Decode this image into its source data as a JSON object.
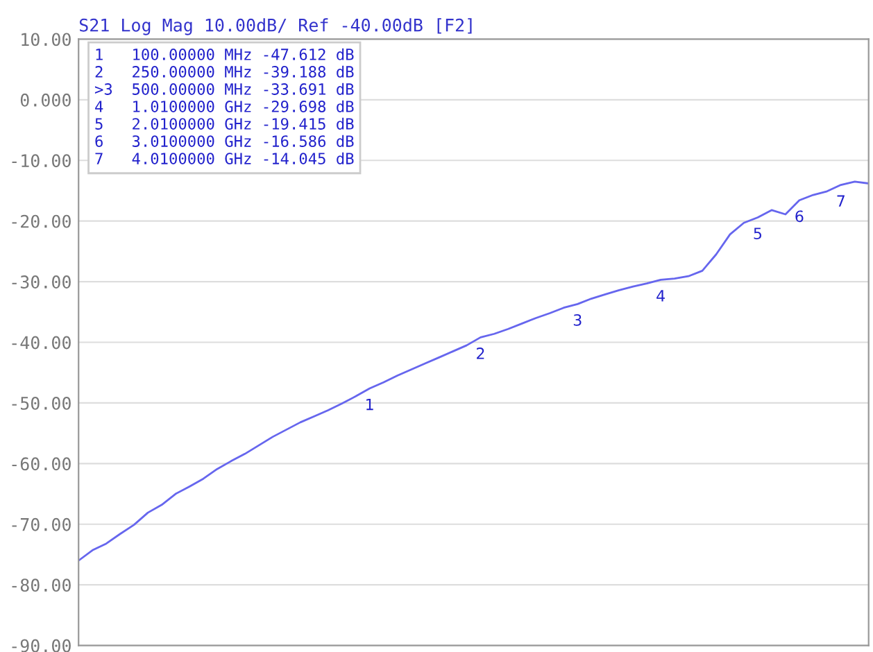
{
  "chart_data": {
    "type": "line",
    "title": "S21 Log Mag 10.00dB/ Ref -40.00dB [F2]",
    "grid": "y",
    "tick_labels": "y",
    "categories": [
      null,
      null,
      null,
      null,
      null,
      null,
      null,
      null,
      null,
      null,
      null,
      null,
      null,
      null,
      null,
      null,
      null,
      null,
      null,
      null,
      null,
      null,
      null,
      null,
      null,
      null,
      null,
      null,
      null,
      null,
      null,
      null,
      null,
      null,
      null,
      null,
      null,
      null,
      null,
      null,
      null,
      null,
      null,
      null,
      null,
      null,
      null,
      null,
      null,
      null,
      null,
      null,
      null,
      null,
      null,
      null,
      null,
      null
    ],
    "ylim": [
      -90,
      10
    ],
    "yticks": [
      {
        "value": 10,
        "label": "10.00"
      },
      {
        "value": 0,
        "label": "0.000"
      },
      {
        "value": -10,
        "label": "-10.00"
      },
      {
        "value": -20,
        "label": "-20.00"
      },
      {
        "value": -30,
        "label": "-30.00"
      },
      {
        "value": -40,
        "label": "-40.00"
      },
      {
        "value": -50,
        "label": "-50.00"
      },
      {
        "value": -60,
        "label": "-60.00"
      },
      {
        "value": -70,
        "label": "-70.00"
      },
      {
        "value": -80,
        "label": "-80.00"
      },
      {
        "value": -90,
        "label": "-90.00"
      }
    ],
    "series": [
      {
        "color": "#6666ee",
        "values": [
          -76.0,
          -74.3,
          -73.2,
          -71.6,
          -70.1,
          -68.1,
          -66.8,
          -65.0,
          -63.8,
          -62.5,
          -60.9,
          -59.6,
          -58.4,
          -57.0,
          -55.6,
          -54.4,
          -53.2,
          -52.2,
          -51.2,
          -50.1,
          -48.9,
          -47.612,
          -46.6,
          -45.5,
          -44.5,
          -43.5,
          -42.5,
          -41.5,
          -40.5,
          -39.188,
          -38.6,
          -37.8,
          -36.9,
          -36.0,
          -35.2,
          -34.3,
          -33.691,
          -32.8,
          -32.1,
          -31.4,
          -30.8,
          -30.3,
          -29.698,
          -29.5,
          -29.1,
          -28.2,
          -25.5,
          -22.2,
          -20.3,
          -19.415,
          -18.2,
          -18.9,
          -16.586,
          -15.7,
          -15.1,
          -14.045,
          -13.5,
          -13.8
        ],
        "marker": "none"
      }
    ],
    "annotations": [
      "1   100.00000 MHz -47.612 dB",
      "2   250.00000 MHz -39.188 dB",
      ">3  500.00000 MHz -33.691 dB",
      "4   1.0100000 GHz -29.698 dB",
      "5   2.0100000 GHz -19.415 dB",
      "6   3.0100000 GHz -16.586 dB",
      "7   4.0100000 GHz -14.045 dB",
      {
        "text": "1",
        "y": -47.612
      },
      {
        "text": "2",
        "y": -39.188
      },
      {
        "text": "3",
        "y": -33.691
      },
      {
        "text": "4",
        "y": -29.698
      },
      {
        "text": "5",
        "y": -19.415
      },
      {
        "text": "6",
        "y": -16.586
      },
      {
        "text": "7",
        "y": -14.045
      }
    ]
  }
}
